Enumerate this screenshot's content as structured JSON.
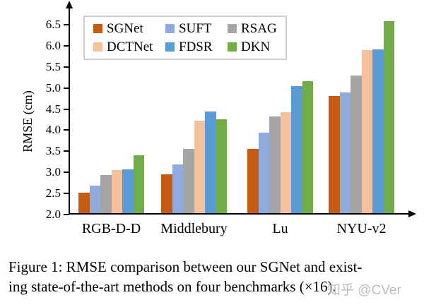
{
  "figure": {
    "caption_line1": "Figure 1: RMSE comparison between our SGNet and exist-",
    "caption_line2": "ing state-of-the-art methods on four benchmarks (×16).",
    "watermark": "知乎 @CVer"
  },
  "chart_data": {
    "type": "bar",
    "title": "",
    "xlabel": "",
    "ylabel": "RMSE (cm)",
    "ylim": [
      2.0,
      6.5
    ],
    "ytick_step": 0.5,
    "yticks": [
      "6.5",
      "6.0",
      "5.5",
      "5.0",
      "4.5",
      "4.0",
      "3.5",
      "3.0",
      "2.5",
      "2.0"
    ],
    "grid": false,
    "legend_position": "inside-top-left",
    "categories": [
      "RGB-D-D",
      "Middlebury",
      "Lu",
      "NYU-v2"
    ],
    "series": [
      {
        "name": "SGNet",
        "color": "#C55A11",
        "values": [
          2.48,
          2.92,
          3.52,
          4.77
        ]
      },
      {
        "name": "SUFT",
        "color": "#8FAADC",
        "values": [
          2.66,
          3.15,
          3.9,
          4.86
        ]
      },
      {
        "name": "RSAG",
        "color": "#A5A5A5",
        "values": [
          2.9,
          3.53,
          4.29,
          5.27
        ]
      },
      {
        "name": "DCTNet",
        "color": "#F5C09C",
        "values": [
          3.02,
          4.19,
          4.4,
          5.86
        ]
      },
      {
        "name": "FDSR",
        "color": "#5B9BD5",
        "values": [
          3.04,
          4.41,
          5.01,
          5.88
        ]
      },
      {
        "name": "DKN",
        "color": "#70AD47",
        "values": [
          3.38,
          4.23,
          5.13,
          6.55
        ]
      }
    ],
    "axis_color": "#000000",
    "legend_border_color": "#cfcfcf"
  }
}
